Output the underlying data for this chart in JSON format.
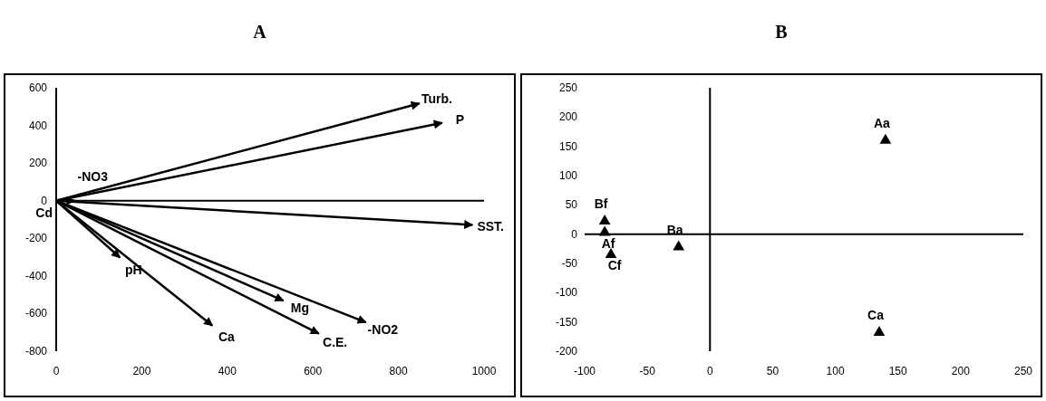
{
  "chart_data": [
    {
      "type": "line",
      "title": "A",
      "xlim": [
        0,
        1000
      ],
      "ylim": [
        -800,
        600
      ],
      "xticks": [
        0,
        200,
        400,
        600,
        800,
        1000
      ],
      "yticks": [
        600,
        400,
        200,
        0,
        -200,
        -400,
        -600,
        -800
      ],
      "marker": "none",
      "line_style": "solid",
      "annotations": [
        {
          "text": "Cd",
          "x": 0,
          "y": 0
        }
      ],
      "series": [
        {
          "name": "Turb.",
          "color": "#000000",
          "x": [
            0,
            849
          ],
          "values": [
            0,
            517
          ]
        },
        {
          "name": "P",
          "color": "#000000",
          "x": [
            0,
            902
          ],
          "values": [
            0,
            414
          ]
        },
        {
          "name": "-NO3",
          "color": "#000000",
          "x": [
            0,
            43
          ],
          "values": [
            0,
            0
          ]
        },
        {
          "name": "SST.",
          "color": "#000000",
          "x": [
            0,
            973
          ],
          "values": [
            0,
            -129
          ]
        },
        {
          "name": "pH",
          "color": "#000000",
          "x": [
            0,
            149
          ],
          "values": [
            0,
            -302
          ]
        },
        {
          "name": "Ca",
          "color": "#000000",
          "x": [
            0,
            365
          ],
          "values": [
            0,
            -664
          ]
        },
        {
          "name": "Mg",
          "color": "#000000",
          "x": [
            0,
            531
          ],
          "values": [
            0,
            -531
          ]
        },
        {
          "name": "C.E.",
          "color": "#000000",
          "x": [
            0,
            614
          ],
          "values": [
            0,
            -707
          ]
        },
        {
          "name": "-NO2",
          "color": "#000000",
          "x": [
            0,
            724
          ],
          "values": [
            0,
            -647
          ]
        }
      ]
    },
    {
      "type": "scatter",
      "title": "B",
      "xlim": [
        -100,
        250
      ],
      "ylim": [
        -200,
        250
      ],
      "xticks": [
        -100,
        -50,
        0,
        50,
        100,
        150,
        200,
        250
      ],
      "yticks": [
        250,
        200,
        150,
        100,
        50,
        0,
        -50,
        -100,
        -150,
        -200
      ],
      "marker": "triangle",
      "series": [
        {
          "name": "Aa",
          "color": "#000000",
          "x": [
            140
          ],
          "values": [
            160
          ]
        },
        {
          "name": "Bf",
          "color": "#000000",
          "x": [
            -84
          ],
          "values": [
            22
          ]
        },
        {
          "name": "Af",
          "color": "#000000",
          "x": [
            -84
          ],
          "values": [
            3
          ]
        },
        {
          "name": "Cf",
          "color": "#000000",
          "x": [
            -79
          ],
          "values": [
            -35
          ]
        },
        {
          "name": "Ba",
          "color": "#000000",
          "x": [
            -25
          ],
          "values": [
            -22
          ]
        },
        {
          "name": "Ca",
          "color": "#000000",
          "x": [
            135
          ],
          "values": [
            -168
          ]
        }
      ]
    }
  ]
}
